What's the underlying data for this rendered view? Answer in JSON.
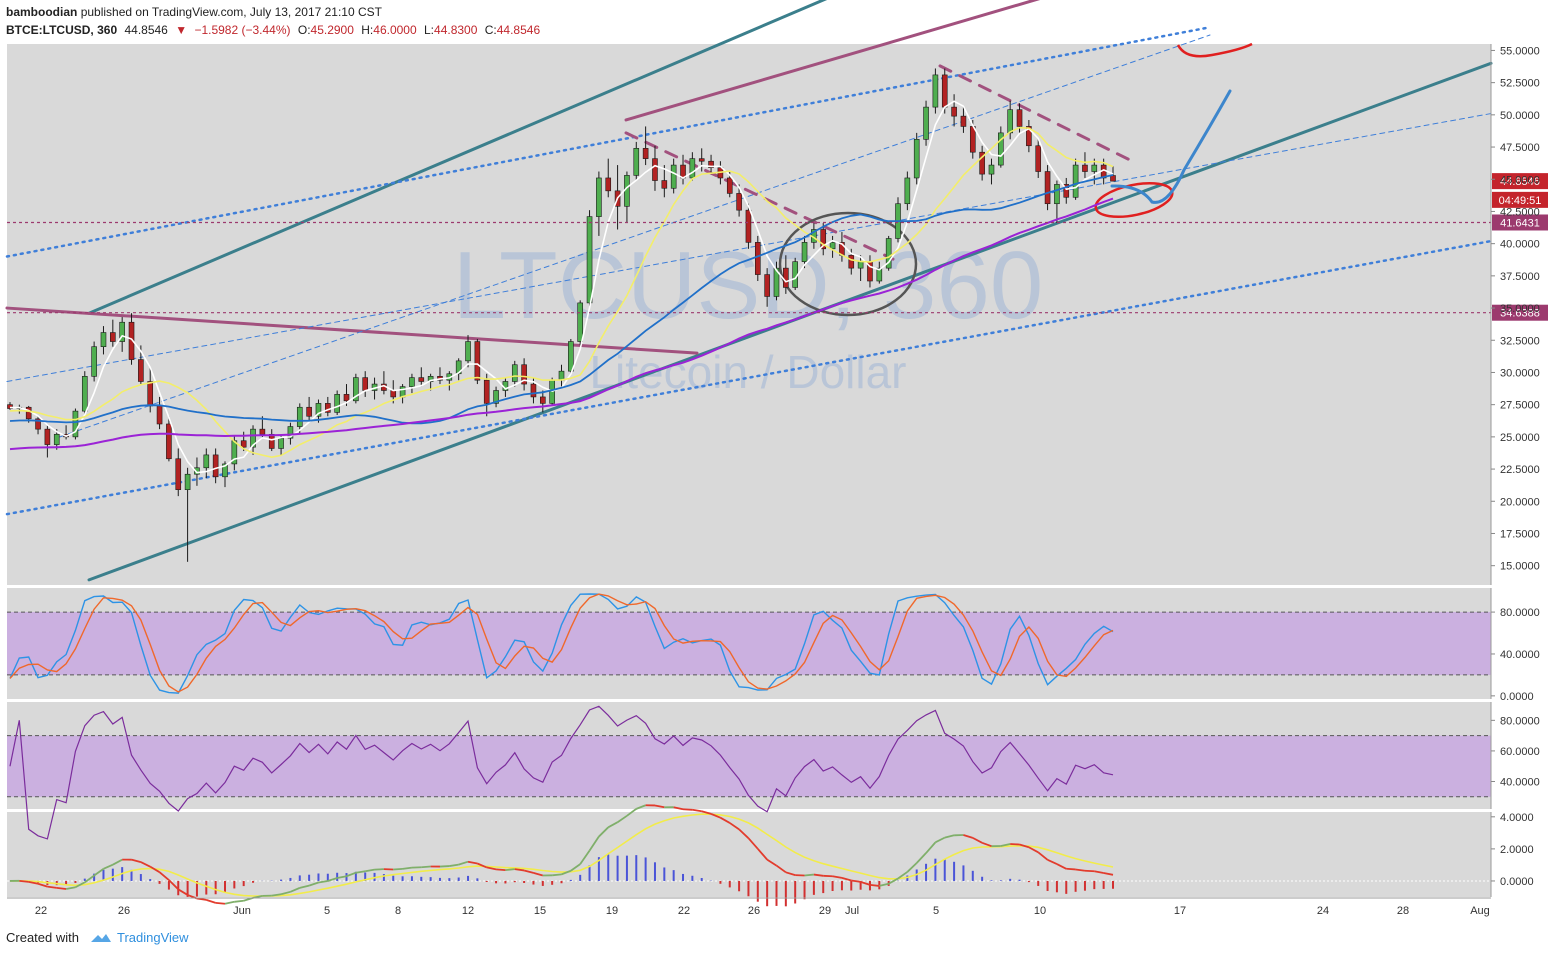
{
  "header": {
    "author": "bamboodian",
    "published_text": "published on TradingView.com, July 13, 2017 21:10 CST",
    "symbol": "BTCE:LTCUSD, 360",
    "last": "44.8546",
    "change": "−1.5982 (−3.44%)",
    "open_label": "O:",
    "open": "45.2900",
    "high_label": "H:",
    "high": "46.0000",
    "low_label": "L:",
    "low": "44.8300",
    "close_label": "C:",
    "close": "44.8546"
  },
  "watermark": {
    "symbol": "LTCUSD, 360",
    "name": "Litecoin / Dollar"
  },
  "footer": {
    "created_with": "Created with",
    "brand": "TradingView"
  },
  "colors": {
    "panel_bg": "#d9d9d9",
    "bull": "#4fae4f",
    "bear": "#b22222",
    "channel": "#3b7f8c",
    "resistance": "#a2517e",
    "ma_fast": "#ffffff",
    "ma_mid": "#f3ee6a",
    "ma_slow": "#2070c9",
    "ma_long": "#9b23d6",
    "stoch_k": "#2d93e6",
    "stoch_d": "#f0682b",
    "rsi": "#7b2d9c",
    "band_fill": "#c8a8e0"
  },
  "chart_data": [
    {
      "type": "candlestick",
      "panel": "price",
      "x_ticks": [
        "22",
        "26",
        "Jun",
        "5",
        "8",
        "12",
        "15",
        "19",
        "22",
        "26",
        "29",
        "Jul",
        "5",
        "10",
        "17",
        "24",
        "28",
        "Aug"
      ],
      "y_ticks": [
        "55.0000",
        "52.5000",
        "50.0000",
        "47.5000",
        "45.0000",
        "42.5000",
        "40.0000",
        "37.5000",
        "35.0000",
        "32.5000",
        "30.0000",
        "27.5000",
        "25.0000",
        "22.5000",
        "20.0000",
        "17.5000",
        "15.0000"
      ],
      "ylim": [
        13.5,
        55.5
      ],
      "horizontal_levels": [
        {
          "value": 41.6431,
          "label": "41.6431"
        },
        {
          "value": 34.6388,
          "label": "34.6388"
        }
      ],
      "price_labels": [
        {
          "value": 44.8546,
          "label": "44.8546"
        },
        {
          "value": 43.4,
          "label": "04:49:51"
        }
      ],
      "ohlc_approx": [
        [
          27.5,
          27.7,
          27.1,
          27.2
        ],
        [
          27.2,
          27.5,
          26.8,
          27.3
        ],
        [
          27.3,
          27.4,
          26.1,
          26.4
        ],
        [
          26.4,
          26.6,
          25.2,
          25.6
        ],
        [
          25.6,
          25.9,
          23.4,
          24.4
        ],
        [
          24.4,
          25.6,
          24.0,
          25.2
        ],
        [
          25.2,
          25.9,
          24.8,
          25.0
        ],
        [
          25.0,
          27.2,
          24.8,
          27.0
        ],
        [
          27.0,
          30.1,
          26.7,
          29.7
        ],
        [
          29.7,
          32.4,
          29.3,
          32.0
        ],
        [
          32.0,
          33.6,
          31.4,
          33.1
        ],
        [
          33.1,
          34.1,
          32.0,
          32.4
        ],
        [
          32.4,
          34.3,
          31.6,
          33.9
        ],
        [
          33.9,
          34.6,
          30.6,
          31.0
        ],
        [
          31.0,
          32.1,
          29.1,
          29.3
        ],
        [
          29.3,
          30.4,
          26.9,
          27.4
        ],
        [
          27.4,
          28.1,
          25.6,
          26.0
        ],
        [
          26.0,
          26.6,
          23.1,
          23.3
        ],
        [
          23.3,
          24.1,
          20.4,
          20.9
        ],
        [
          20.9,
          22.6,
          15.3,
          22.1
        ],
        [
          22.1,
          23.4,
          21.2,
          22.6
        ],
        [
          22.6,
          24.1,
          21.8,
          23.6
        ],
        [
          23.6,
          24.1,
          21.4,
          21.9
        ],
        [
          21.9,
          23.1,
          21.1,
          22.9
        ],
        [
          22.9,
          25.1,
          22.4,
          24.7
        ],
        [
          24.7,
          25.4,
          23.9,
          24.2
        ],
        [
          24.2,
          25.9,
          23.6,
          25.6
        ],
        [
          25.6,
          26.6,
          24.9,
          25.2
        ],
        [
          25.2,
          25.6,
          23.9,
          24.1
        ],
        [
          24.1,
          25.1,
          23.6,
          24.9
        ],
        [
          24.9,
          26.1,
          24.4,
          25.8
        ],
        [
          25.8,
          27.6,
          25.3,
          27.3
        ],
        [
          27.3,
          28.1,
          26.1,
          26.6
        ],
        [
          26.6,
          27.9,
          26.1,
          27.6
        ],
        [
          27.6,
          28.1,
          26.6,
          26.9
        ],
        [
          26.9,
          28.6,
          26.7,
          28.3
        ],
        [
          28.3,
          29.1,
          27.4,
          27.8
        ],
        [
          27.8,
          29.9,
          27.6,
          29.6
        ],
        [
          29.6,
          30.1,
          28.1,
          28.6
        ],
        [
          28.6,
          29.6,
          27.9,
          29.1
        ],
        [
          29.1,
          30.1,
          28.3,
          28.6
        ],
        [
          28.6,
          29.4,
          27.6,
          28.1
        ],
        [
          28.1,
          29.1,
          27.6,
          28.9
        ],
        [
          28.9,
          29.9,
          28.4,
          29.6
        ],
        [
          29.6,
          30.4,
          28.9,
          29.3
        ],
        [
          29.3,
          29.9,
          28.6,
          29.7
        ],
        [
          29.7,
          30.4,
          29.1,
          29.4
        ],
        [
          29.4,
          30.1,
          28.6,
          29.9
        ],
        [
          29.9,
          31.1,
          29.4,
          30.9
        ],
        [
          30.9,
          32.9,
          30.4,
          32.4
        ],
        [
          32.4,
          32.6,
          29.1,
          29.4
        ],
        [
          29.4,
          29.9,
          26.6,
          27.6
        ],
        [
          27.6,
          28.9,
          27.3,
          28.6
        ],
        [
          28.6,
          29.6,
          28.1,
          29.3
        ],
        [
          29.3,
          30.9,
          28.9,
          30.6
        ],
        [
          30.6,
          31.1,
          28.6,
          29.1
        ],
        [
          29.1,
          29.6,
          27.6,
          28.1
        ],
        [
          28.1,
          28.6,
          26.9,
          27.6
        ],
        [
          27.6,
          29.6,
          27.4,
          29.4
        ],
        [
          29.4,
          30.6,
          28.9,
          30.1
        ],
        [
          30.1,
          32.6,
          29.9,
          32.4
        ],
        [
          32.4,
          35.6,
          32.1,
          35.4
        ],
        [
          35.4,
          42.6,
          35.1,
          42.1
        ],
        [
          42.1,
          45.6,
          40.6,
          45.1
        ],
        [
          45.1,
          46.6,
          43.6,
          44.1
        ],
        [
          44.1,
          46.1,
          41.1,
          42.9
        ],
        [
          42.9,
          45.6,
          41.6,
          45.3
        ],
        [
          45.3,
          47.9,
          44.9,
          47.4
        ],
        [
          47.4,
          49.1,
          46.1,
          46.6
        ],
        [
          46.6,
          47.6,
          44.1,
          44.9
        ],
        [
          44.9,
          46.1,
          43.6,
          44.3
        ],
        [
          44.3,
          46.6,
          43.9,
          46.1
        ],
        [
          46.1,
          46.9,
          44.6,
          45.1
        ],
        [
          45.1,
          47.1,
          44.9,
          46.6
        ],
        [
          46.6,
          47.4,
          45.6,
          46.4
        ],
        [
          46.4,
          46.9,
          45.4,
          45.9
        ],
        [
          45.9,
          46.4,
          44.6,
          45.1
        ],
        [
          45.1,
          45.6,
          43.6,
          43.9
        ],
        [
          43.9,
          44.6,
          42.1,
          42.6
        ],
        [
          42.6,
          43.1,
          39.6,
          40.1
        ],
        [
          40.1,
          40.6,
          37.1,
          37.6
        ],
        [
          37.6,
          38.1,
          35.1,
          35.9
        ],
        [
          35.9,
          38.6,
          35.6,
          38.1
        ],
        [
          38.1,
          39.1,
          36.1,
          36.6
        ],
        [
          36.6,
          38.9,
          36.4,
          38.6
        ],
        [
          38.6,
          40.6,
          38.1,
          40.1
        ],
        [
          40.1,
          41.6,
          39.6,
          41.1
        ],
        [
          41.1,
          41.6,
          39.1,
          39.6
        ],
        [
          39.6,
          40.6,
          38.9,
          40.1
        ],
        [
          40.1,
          40.9,
          38.6,
          39.1
        ],
        [
          39.1,
          39.6,
          37.6,
          38.1
        ],
        [
          38.1,
          39.1,
          37.1,
          38.6
        ],
        [
          38.6,
          39.1,
          36.6,
          37.1
        ],
        [
          37.1,
          38.6,
          36.9,
          38.1
        ],
        [
          38.1,
          40.6,
          37.9,
          40.4
        ],
        [
          40.4,
          43.6,
          40.1,
          43.1
        ],
        [
          43.1,
          45.6,
          42.6,
          45.1
        ],
        [
          45.1,
          48.6,
          44.6,
          48.1
        ],
        [
          48.1,
          51.1,
          47.6,
          50.6
        ],
        [
          50.6,
          53.6,
          50.1,
          53.1
        ],
        [
          53.1,
          53.6,
          50.1,
          50.6
        ],
        [
          50.6,
          51.6,
          49.1,
          49.9
        ],
        [
          49.9,
          50.6,
          48.6,
          49.1
        ],
        [
          49.1,
          49.6,
          46.6,
          47.1
        ],
        [
          47.1,
          47.6,
          44.9,
          45.4
        ],
        [
          45.4,
          46.6,
          44.6,
          46.1
        ],
        [
          46.1,
          49.1,
          45.9,
          48.6
        ],
        [
          48.6,
          51.1,
          48.1,
          50.4
        ],
        [
          50.4,
          50.9,
          48.6,
          49.1
        ],
        [
          49.1,
          49.6,
          47.1,
          47.6
        ],
        [
          47.6,
          48.1,
          45.1,
          45.6
        ],
        [
          45.6,
          46.1,
          42.6,
          43.1
        ],
        [
          43.1,
          44.9,
          41.6,
          44.6
        ],
        [
          44.6,
          45.1,
          43.1,
          43.6
        ],
        [
          43.6,
          46.6,
          43.4,
          46.1
        ],
        [
          46.1,
          47.1,
          45.1,
          45.6
        ],
        [
          45.6,
          46.6,
          44.6,
          46.1
        ],
        [
          46.1,
          46.6,
          44.6,
          45.1
        ],
        [
          45.29,
          46.0,
          44.83,
          44.8546
        ]
      ]
    },
    {
      "type": "line",
      "panel": "stochastic",
      "y_ticks": [
        "80.0000",
        "40.0000",
        "0.0000"
      ],
      "ylim": [
        -3,
        103
      ],
      "bands": [
        20,
        80
      ]
    },
    {
      "type": "line",
      "panel": "rsi",
      "y_ticks": [
        "80.0000",
        "60.0000",
        "40.0000"
      ],
      "ylim": [
        22,
        92
      ],
      "bands": [
        30,
        70
      ]
    },
    {
      "type": "bar",
      "panel": "macd",
      "y_ticks": [
        "4.0000",
        "2.0000",
        "0.0000"
      ],
      "ylim": [
        -1.0,
        4.3
      ]
    }
  ]
}
